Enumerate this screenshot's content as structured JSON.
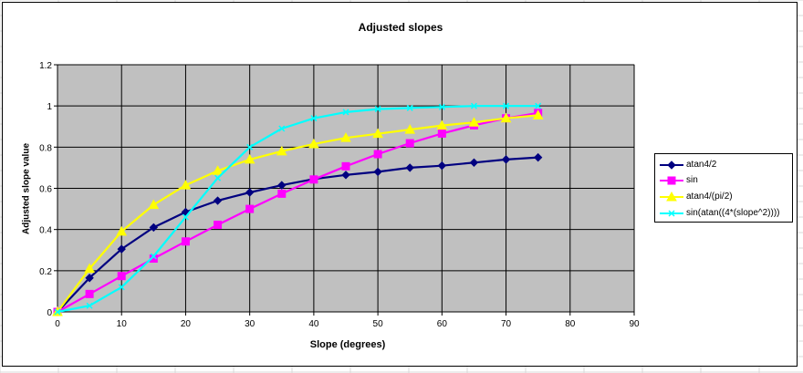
{
  "chart_data": {
    "type": "line",
    "title": "Adjusted slopes",
    "xlabel": "Slope (degrees)",
    "ylabel": "Adjusted slope value",
    "xlim": [
      0,
      90
    ],
    "ylim": [
      0,
      1.2
    ],
    "xticks": [
      "0",
      "10",
      "20",
      "30",
      "40",
      "50",
      "60",
      "70",
      "80",
      "90"
    ],
    "yticks": [
      "0",
      "0.2",
      "0.4",
      "0.6",
      "0.8",
      "1",
      "1.2"
    ],
    "grid": true,
    "legend_position": "right",
    "plot_background": "#c0c0c0",
    "x": [
      0,
      5,
      10,
      15,
      20,
      25,
      30,
      35,
      40,
      45,
      50,
      55,
      60,
      65,
      70,
      75
    ],
    "series": [
      {
        "name": "atan4/2",
        "color": "#000080",
        "marker": "diamond",
        "values": [
          0,
          0.165,
          0.305,
          0.41,
          0.485,
          0.54,
          0.58,
          0.615,
          0.645,
          0.665,
          0.68,
          0.7,
          0.71,
          0.725,
          0.74,
          0.75
        ]
      },
      {
        "name": "sin",
        "color": "#ff00ff",
        "marker": "square",
        "values": [
          0,
          0.087,
          0.174,
          0.259,
          0.342,
          0.423,
          0.5,
          0.574,
          0.643,
          0.707,
          0.766,
          0.819,
          0.866,
          0.906,
          0.94,
          0.966
        ]
      },
      {
        "name": "atan4/(pi/2)",
        "color": "#ffff00",
        "marker": "triangle",
        "values": [
          0,
          0.21,
          0.39,
          0.52,
          0.615,
          0.685,
          0.74,
          0.78,
          0.815,
          0.845,
          0.865,
          0.885,
          0.905,
          0.92,
          0.94,
          0.955
        ]
      },
      {
        "name": "sin(atan((4*(slope^2))))",
        "color": "#00ffff",
        "marker": "x",
        "values": [
          0,
          0.03,
          0.12,
          0.27,
          0.46,
          0.65,
          0.8,
          0.89,
          0.94,
          0.97,
          0.985,
          0.99,
          0.995,
          1.0,
          1.0,
          1.0
        ]
      }
    ]
  }
}
